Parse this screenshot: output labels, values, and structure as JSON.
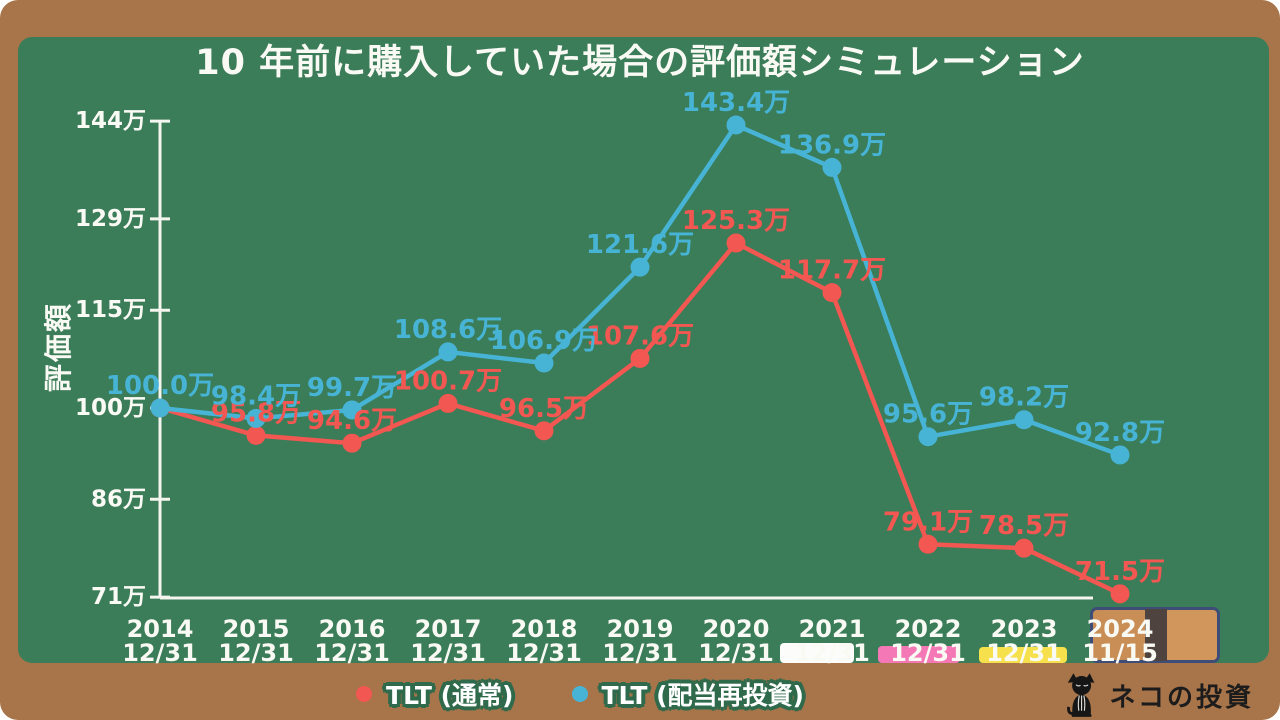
{
  "page": {
    "frame_color": "#A8744A",
    "board_color": "#3B7C59",
    "axis_color": "#F5F5EF",
    "text_color": "#FAFAF5"
  },
  "chart_data": {
    "type": "line",
    "title": "10 年前に購入していた場合の評価額シミュレーション",
    "xlabel": "",
    "ylabel": "評価額",
    "unit": "万",
    "ylim": [
      71,
      144
    ],
    "grid": false,
    "legend_position": "bottom",
    "y_ticks": [
      {
        "label": "144万",
        "value": 144
      },
      {
        "label": "129万",
        "value": 129
      },
      {
        "label": "115万",
        "value": 115
      },
      {
        "label": "100万",
        "value": 100
      },
      {
        "label": "86万",
        "value": 86
      },
      {
        "label": "71万",
        "value": 71
      }
    ],
    "x_categories": [
      {
        "year": "2014",
        "date": "12/31",
        "overlay": false
      },
      {
        "year": "2015",
        "date": "12/31",
        "overlay": false
      },
      {
        "year": "2016",
        "date": "12/31",
        "overlay": false
      },
      {
        "year": "2017",
        "date": "12/31",
        "overlay": false
      },
      {
        "year": "2018",
        "date": "12/31",
        "overlay": false
      },
      {
        "year": "2019",
        "date": "12/31",
        "overlay": false
      },
      {
        "year": "2020",
        "date": "12/31",
        "overlay": false
      },
      {
        "year": "2021",
        "date": "12/31",
        "overlay": false
      },
      {
        "year": "2022",
        "date": "12/31",
        "overlay": false
      },
      {
        "year": "2023",
        "date": "12/31",
        "overlay": false
      },
      {
        "year": "2024",
        "date": "11/15",
        "overlay": true
      }
    ],
    "series": [
      {
        "name": "TLT (通常)",
        "color": "#F25751",
        "values": [
          100.0,
          95.8,
          94.6,
          100.7,
          96.5,
          107.6,
          125.3,
          117.7,
          79.1,
          78.5,
          71.5
        ],
        "point_labels": [
          "",
          "95.8万",
          "94.6万",
          "100.7万",
          "96.5万",
          "107.6万",
          "125.3万",
          "117.7万",
          "79.1万",
          "78.5万",
          "71.5万"
        ]
      },
      {
        "name": "TLT (配当再投資)",
        "color": "#47B4D6",
        "values": [
          100.0,
          98.4,
          99.7,
          108.6,
          106.9,
          121.6,
          143.4,
          136.9,
          95.6,
          98.2,
          92.8
        ],
        "point_labels": [
          "100.0万",
          "98.4万",
          "99.7万",
          "108.6万",
          "106.9万",
          "121.6万",
          "143.4万",
          "136.9万",
          "95.6万",
          "98.2万",
          "92.8万"
        ]
      }
    ]
  },
  "legend": {
    "items": [
      {
        "label": "TLT (通常)",
        "color": "#F25751"
      },
      {
        "label": "TLT (配当再投資)",
        "color": "#47B4D6"
      }
    ]
  },
  "decorations": {
    "chalk_white_color": "#FCFCFA",
    "chalk_pink_color": "#F478B5",
    "chalk_yellow_color": "#F6E04B",
    "eraser_body_color": "#C98E55",
    "eraser_band_color": "#4F4340",
    "eraser_outline_color": "#3E4C78"
  },
  "logo": {
    "text": "ネコの投資"
  }
}
